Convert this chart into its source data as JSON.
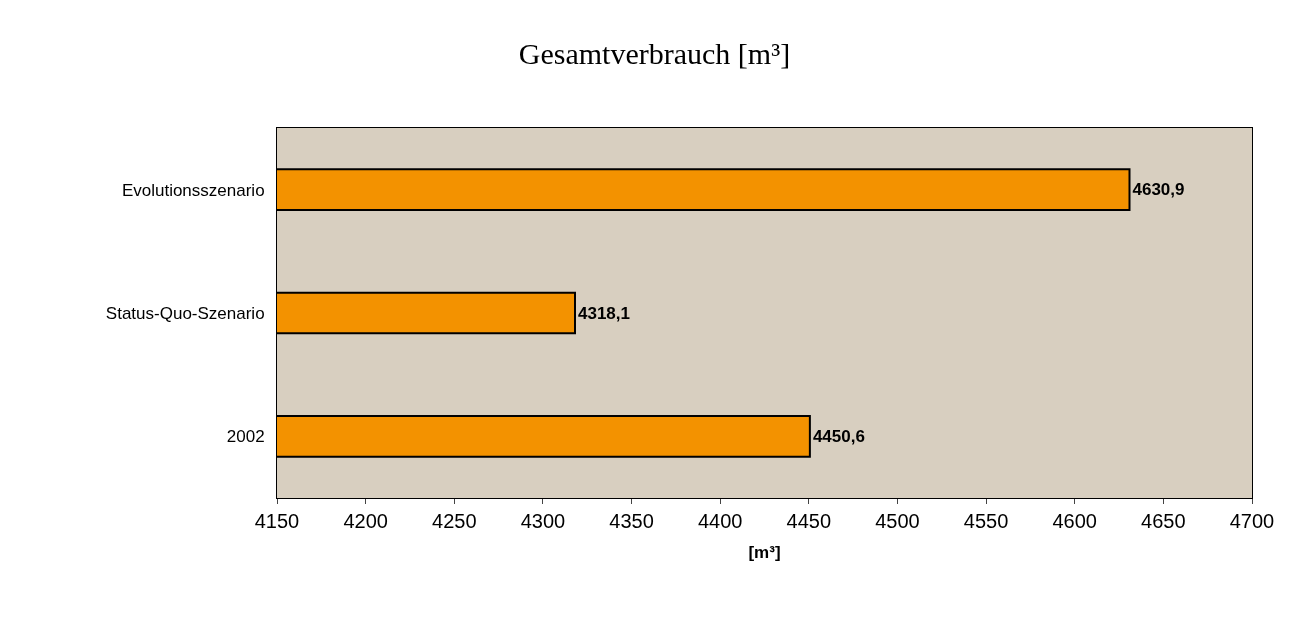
{
  "chart_data": {
    "type": "bar",
    "orientation": "horizontal",
    "title": "Gesamtverbrauch [m³]",
    "xlabel": "[m³]",
    "categories": [
      "Evolutionsszenario",
      "Status-Quo-Szenario",
      "2002"
    ],
    "values": [
      4630.9,
      4318.1,
      4450.6
    ],
    "value_labels": [
      "4630,9",
      "4318,1",
      "4450,6"
    ],
    "color": "#f39200",
    "xlim": [
      4150,
      4700
    ],
    "xticks": [
      4150,
      4200,
      4250,
      4300,
      4350,
      4400,
      4450,
      4500,
      4550,
      4600,
      4650,
      4700
    ],
    "grid": false,
    "legend": false
  }
}
